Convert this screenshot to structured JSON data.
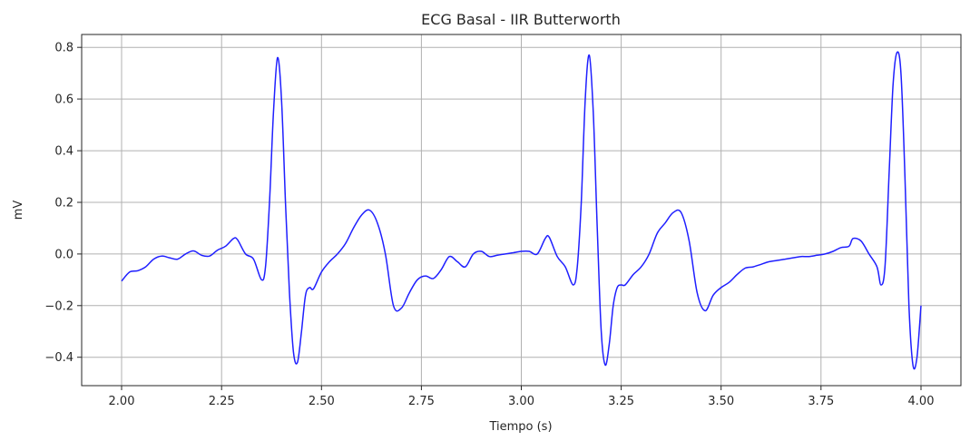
{
  "chart_data": {
    "type": "line",
    "title": "ECG Basal - IIR Butterworth",
    "xlabel": "Tiempo (s)",
    "ylabel": "mV",
    "xlim": [
      1.9,
      4.1
    ],
    "ylim": [
      -0.51,
      0.85
    ],
    "grid": true,
    "x_ticks": [
      2.0,
      2.25,
      2.5,
      2.75,
      3.0,
      3.25,
      3.5,
      3.75,
      4.0
    ],
    "x_tick_labels": [
      "2.00",
      "2.25",
      "2.50",
      "2.75",
      "3.00",
      "3.25",
      "3.50",
      "3.75",
      "4.00"
    ],
    "y_ticks": [
      -0.4,
      -0.2,
      0.0,
      0.2,
      0.4,
      0.6,
      0.8
    ],
    "y_tick_labels": [
      "−0.4",
      "−0.2",
      "0.0",
      "0.2",
      "0.4",
      "0.6",
      "0.8"
    ],
    "series": [
      {
        "color": "#1f1fff",
        "x": [
          2.0,
          2.02,
          2.04,
          2.06,
          2.08,
          2.1,
          2.12,
          2.14,
          2.16,
          2.18,
          2.2,
          2.22,
          2.24,
          2.26,
          2.28,
          2.29,
          2.31,
          2.33,
          2.35,
          2.36,
          2.37,
          2.38,
          2.39,
          2.4,
          2.41,
          2.42,
          2.43,
          2.44,
          2.45,
          2.46,
          2.47,
          2.48,
          2.5,
          2.52,
          2.54,
          2.56,
          2.58,
          2.6,
          2.62,
          2.64,
          2.66,
          2.68,
          2.7,
          2.72,
          2.74,
          2.76,
          2.78,
          2.8,
          2.82,
          2.84,
          2.86,
          2.88,
          2.9,
          2.92,
          2.94,
          2.96,
          2.98,
          3.0,
          3.02,
          3.04,
          3.06,
          3.07,
          3.09,
          3.11,
          3.13,
          3.14,
          3.15,
          3.16,
          3.17,
          3.18,
          3.19,
          3.2,
          3.21,
          3.22,
          3.23,
          3.24,
          3.25,
          3.26,
          3.28,
          3.3,
          3.32,
          3.34,
          3.36,
          3.38,
          3.4,
          3.42,
          3.44,
          3.46,
          3.48,
          3.5,
          3.52,
          3.54,
          3.56,
          3.58,
          3.6,
          3.62,
          3.64,
          3.66,
          3.68,
          3.7,
          3.72,
          3.74,
          3.76,
          3.78,
          3.8,
          3.82,
          3.83,
          3.85,
          3.87,
          3.89,
          3.9,
          3.91,
          3.92,
          3.93,
          3.94,
          3.95,
          3.96,
          3.97,
          3.98,
          3.99,
          4.0
        ],
        "y": [
          -0.105,
          -0.07,
          -0.065,
          -0.05,
          -0.02,
          -0.008,
          -0.015,
          -0.02,
          0.0,
          0.012,
          -0.005,
          -0.008,
          0.015,
          0.03,
          0.06,
          0.055,
          0.0,
          -0.02,
          -0.1,
          -0.05,
          0.2,
          0.55,
          0.76,
          0.6,
          0.2,
          -0.15,
          -0.38,
          -0.42,
          -0.3,
          -0.16,
          -0.13,
          -0.135,
          -0.07,
          -0.03,
          0.0,
          0.04,
          0.1,
          0.15,
          0.17,
          0.12,
          0.0,
          -0.2,
          -0.21,
          -0.15,
          -0.1,
          -0.085,
          -0.095,
          -0.06,
          -0.01,
          -0.03,
          -0.05,
          0.0,
          0.01,
          -0.01,
          -0.005,
          0.0,
          0.005,
          0.01,
          0.01,
          0.0,
          0.06,
          0.065,
          -0.01,
          -0.05,
          -0.12,
          -0.05,
          0.2,
          0.6,
          0.77,
          0.55,
          0.1,
          -0.3,
          -0.43,
          -0.35,
          -0.2,
          -0.13,
          -0.12,
          -0.12,
          -0.08,
          -0.05,
          0.0,
          0.08,
          0.12,
          0.16,
          0.16,
          0.05,
          -0.15,
          -0.22,
          -0.16,
          -0.13,
          -0.11,
          -0.08,
          -0.055,
          -0.05,
          -0.04,
          -0.03,
          -0.025,
          -0.02,
          -0.015,
          -0.01,
          -0.01,
          -0.005,
          0.0,
          0.01,
          0.025,
          0.03,
          0.06,
          0.05,
          0.0,
          -0.05,
          -0.12,
          -0.05,
          0.3,
          0.65,
          0.78,
          0.7,
          0.3,
          -0.2,
          -0.43,
          -0.4,
          -0.2
        ]
      }
    ]
  }
}
